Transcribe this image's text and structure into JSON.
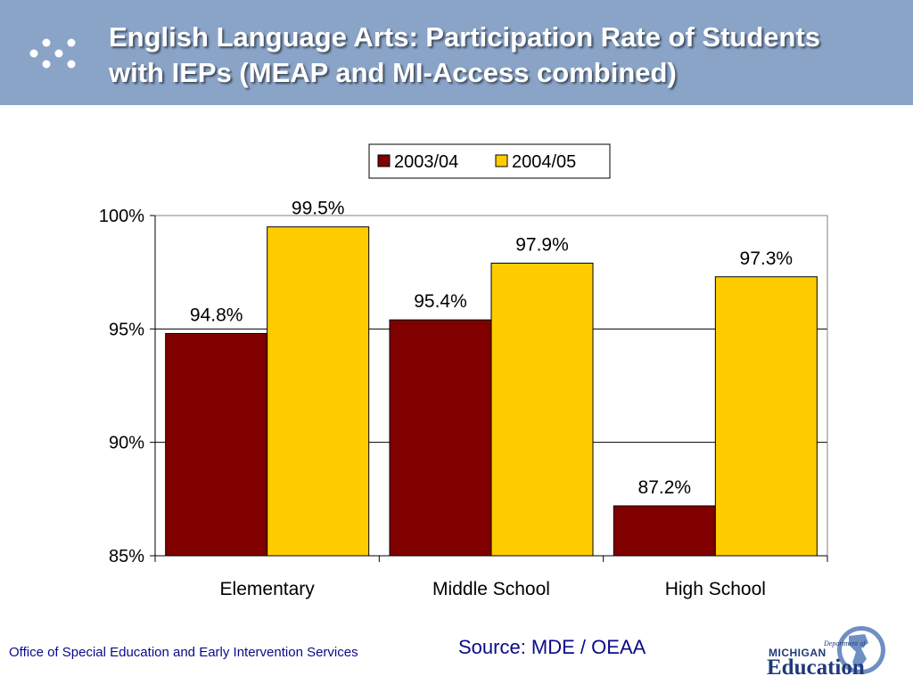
{
  "slide": {
    "title_line1": "English Language Arts: Participation Rate of Students",
    "title_line2": "with IEPs (MEAP and MI-Access combined)"
  },
  "footer": {
    "office": "Office of Special Education and Early Intervention Services",
    "source": "Source: MDE / OEAA"
  },
  "logo": {
    "word1": "MICHIGAN",
    "word2": "Department of",
    "word3": "Education"
  },
  "colors": {
    "header": "#8aa4c8",
    "series1": "#800000",
    "series2": "#ffcc00"
  },
  "chart_data": {
    "type": "bar",
    "categories": [
      "Elementary",
      "Middle School",
      "High School"
    ],
    "series": [
      {
        "name": "2003/04",
        "values": [
          94.8,
          95.4,
          87.2
        ],
        "labels": [
          "94.8%",
          "95.4%",
          "87.2%"
        ],
        "color": "#800000"
      },
      {
        "name": "2004/05",
        "values": [
          99.5,
          97.9,
          97.3
        ],
        "labels": [
          "99.5%",
          "97.9%",
          "97.3%"
        ],
        "color": "#ffcc00"
      }
    ],
    "ylim": [
      85,
      100
    ],
    "yticks": [
      85,
      90,
      95,
      100
    ],
    "ytick_labels": [
      "85%",
      "90%",
      "95%",
      "100%"
    ],
    "grid": true,
    "legend": "top"
  }
}
